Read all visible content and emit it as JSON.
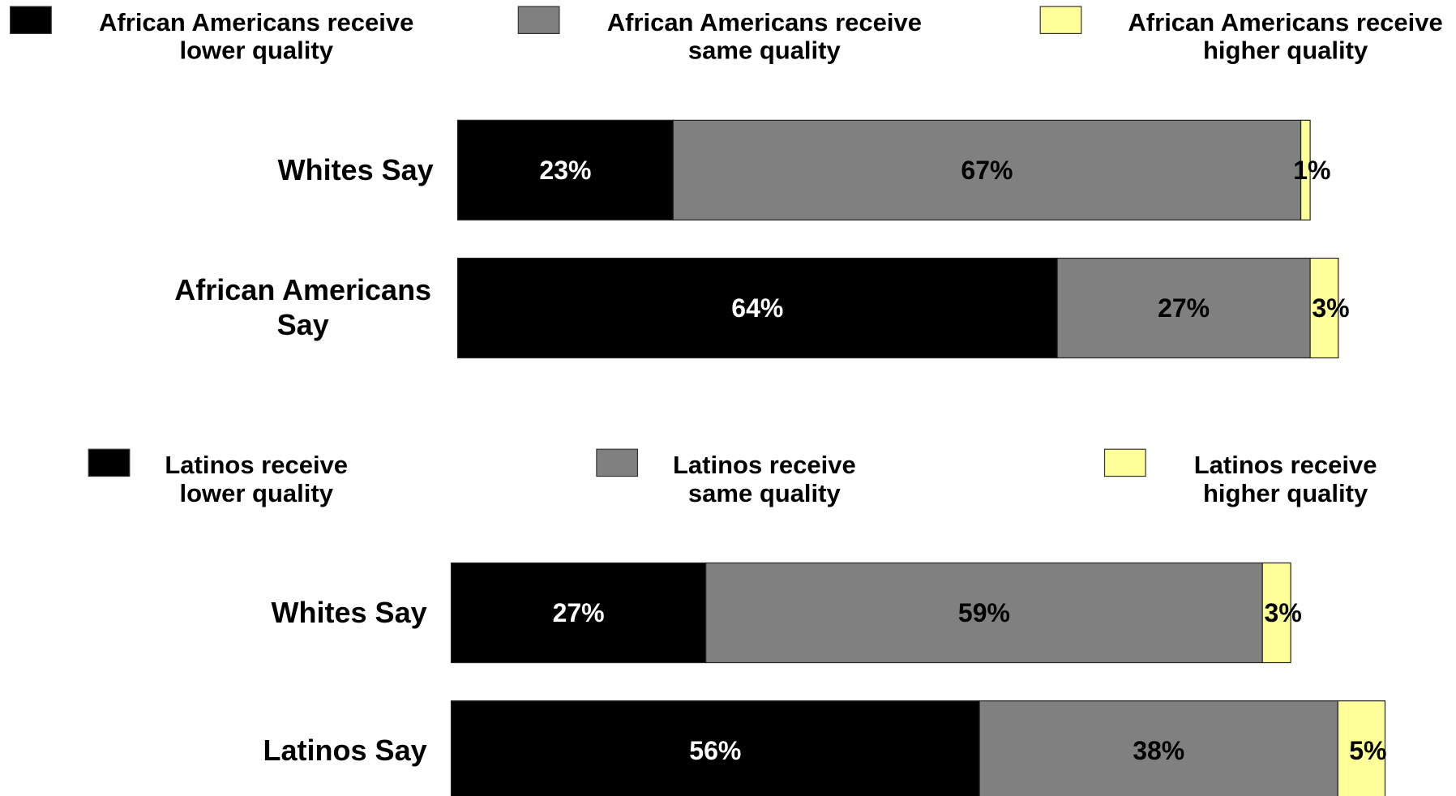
{
  "chart_data": [
    {
      "type": "bar",
      "orientation": "horizontal",
      "stacked": true,
      "categories": [
        "Whites Say",
        "African Americans Say"
      ],
      "series": [
        {
          "name": "African Americans receive lower quality",
          "color": "#000000",
          "label_color": "#ffffff",
          "values": [
            23,
            64
          ],
          "labels": [
            "23%",
            "64%"
          ]
        },
        {
          "name": "African Americans receive same quality",
          "color": "#808080",
          "label_color": "#000000",
          "values": [
            67,
            27
          ],
          "labels": [
            "67%",
            "27%"
          ]
        },
        {
          "name": "African Americans receive higher quality",
          "color": "#ffff99",
          "label_color": "#000000",
          "values": [
            1,
            3
          ],
          "labels": [
            "1%",
            "3%"
          ]
        }
      ],
      "legend_position": "top",
      "xlim": [
        0,
        100
      ],
      "grid": false
    },
    {
      "type": "bar",
      "orientation": "horizontal",
      "stacked": true,
      "categories": [
        "Whites Say",
        "Latinos Say"
      ],
      "series": [
        {
          "name": "Latinos receive lower quality",
          "color": "#000000",
          "label_color": "#ffffff",
          "values": [
            27,
            56
          ],
          "labels": [
            "27%",
            "56%"
          ]
        },
        {
          "name": "Latinos receive same quality",
          "color": "#808080",
          "label_color": "#000000",
          "values": [
            59,
            38
          ],
          "labels": [
            "59%",
            "38%"
          ]
        },
        {
          "name": "Latinos receive higher quality",
          "color": "#ffff99",
          "label_color": "#000000",
          "values": [
            3,
            5
          ],
          "labels": [
            "3%",
            "5%"
          ]
        }
      ],
      "legend_position": "top",
      "xlim": [
        0,
        100
      ],
      "grid": false
    }
  ]
}
